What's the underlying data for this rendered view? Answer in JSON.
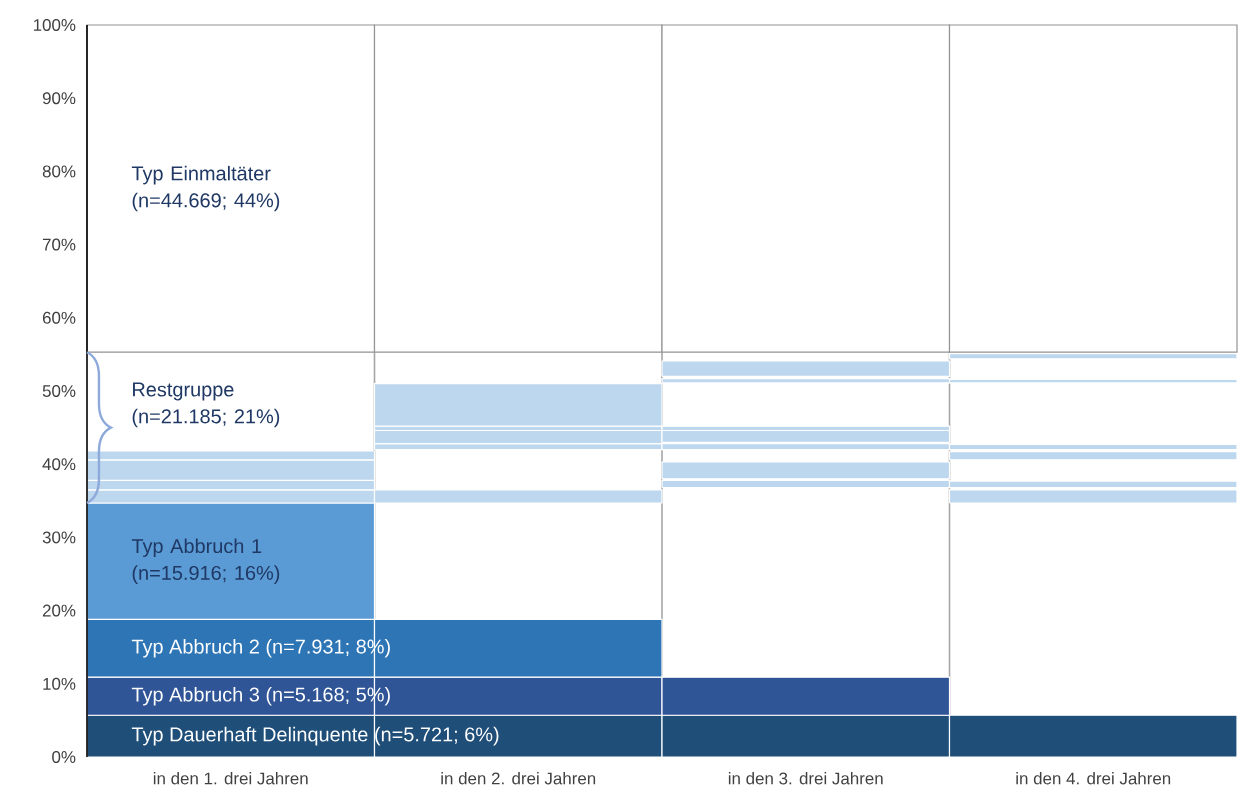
{
  "chart_data": {
    "type": "bar",
    "categories": [
      "in den 1. drei Jahren",
      "in den 2. drei Jahren",
      "in den 3. drei Jahren",
      "in den 4. drei Jahren"
    ],
    "ylim": [
      0,
      100
    ],
    "yticks": [
      {
        "value": 0,
        "label": "0%"
      },
      {
        "value": 10,
        "label": "10%"
      },
      {
        "value": 20,
        "label": "20%"
      },
      {
        "value": 30,
        "label": "30%"
      },
      {
        "value": 40,
        "label": "40%"
      },
      {
        "value": 50,
        "label": "50%"
      },
      {
        "value": 60,
        "label": "60%"
      },
      {
        "value": 70,
        "label": "70%"
      },
      {
        "value": 80,
        "label": "80%"
      },
      {
        "value": 90,
        "label": "90%"
      },
      {
        "value": 100,
        "label": "100%"
      }
    ],
    "grid": "x",
    "series": [
      {
        "name": "Typ Dauerhaft Delinquente (n=5.721; 6%)",
        "color": "#1f4e79",
        "base": [
          0,
          0,
          0,
          0
        ],
        "values": [
          5.7,
          5.7,
          5.7,
          5.7
        ]
      },
      {
        "name": "Typ Abbruch 3 (n=5.168; 5%)",
        "color": "#2f5597",
        "base": [
          5.7,
          5.7,
          5.7,
          null
        ],
        "values": [
          5.2,
          5.2,
          5.2,
          null
        ]
      },
      {
        "name": "Typ Abbruch 2 (n=7.931; 8%)",
        "color": "#2e75b6",
        "base": [
          10.9,
          10.9,
          null,
          null
        ],
        "values": [
          7.9,
          7.9,
          null,
          null
        ]
      },
      {
        "name": "Typ Abbruch 1 (n=15.916; 16%)",
        "color": "#5b9bd5",
        "base": [
          18.8,
          null,
          null,
          null
        ],
        "values": [
          15.9,
          null,
          null,
          null
        ]
      },
      {
        "color": "#bdd7ee",
        "base": [
          34.7,
          34.7,
          36.8,
          34.7
        ],
        "values": [
          1.8,
          1.8,
          1.0,
          1.8
        ]
      },
      {
        "color": "#bdd7ee",
        "base": [
          36.5,
          42.0,
          38.0,
          36.8
        ],
        "values": [
          1.3,
          0.8,
          2.3,
          0.9
        ]
      },
      {
        "color": "#bdd7ee",
        "base": [
          37.8,
          42.8,
          42.0,
          40.6
        ],
        "values": [
          2.8,
          1.8,
          0.8,
          1.1
        ]
      },
      {
        "color": "#bdd7ee",
        "base": [
          40.6,
          44.6,
          43.0,
          42.0
        ],
        "values": [
          1.2,
          0.6,
          1.6,
          0.7
        ]
      },
      {
        "color": "#bdd7ee",
        "base": [
          null,
          45.2,
          44.6,
          51.1
        ],
        "values": [
          null,
          5.8,
          0.6,
          0.5
        ]
      },
      {
        "color": "#bdd7ee",
        "base": [
          null,
          null,
          51.1,
          54.4
        ],
        "values": [
          null,
          null,
          0.6,
          0.7
        ]
      },
      {
        "color": "#bdd7ee",
        "base": [
          null,
          null,
          52.0,
          null
        ],
        "values": [
          null,
          null,
          2.1,
          null
        ]
      },
      {
        "name": "Typ Einmaltäter (n=44.669; 44%)",
        "color": "#ffffff",
        "base": [
          55.3,
          55.3,
          55.3,
          55.3
        ],
        "values": [
          44.7,
          44.7,
          44.7,
          44.7
        ]
      }
    ],
    "annotations": [
      "Restgruppe (n=21.185; 21%)"
    ]
  }
}
